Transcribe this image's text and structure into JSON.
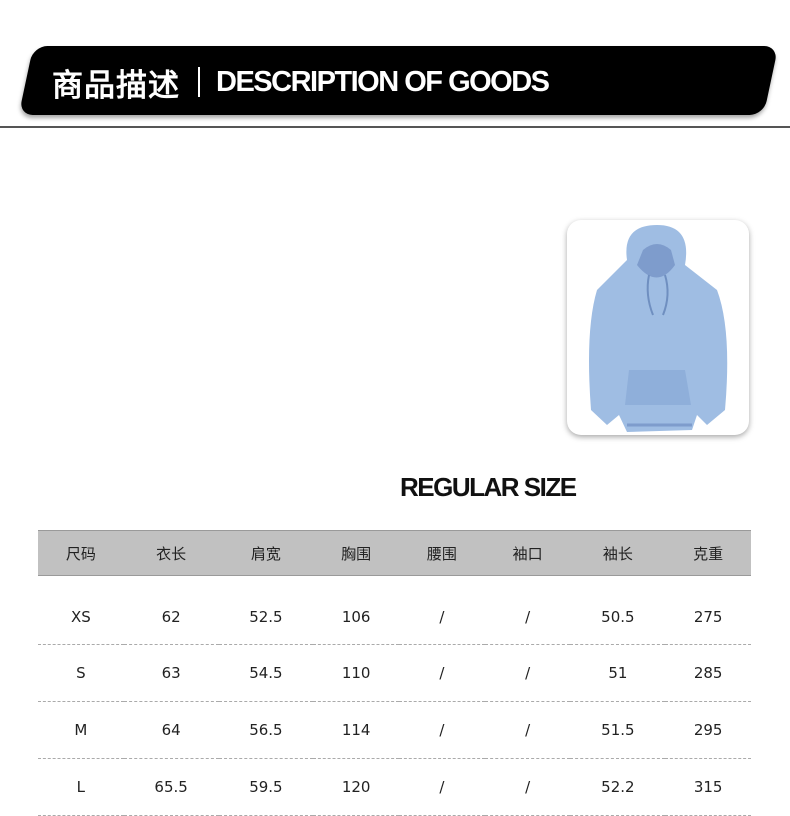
{
  "header": {
    "title_cn": "商品描述",
    "title_en": "DESCRIPTION OF GOODS"
  },
  "product": {
    "image": "light blue hoodie",
    "color": "#9fbde3"
  },
  "size_section": {
    "title": "REGULAR SIZE"
  },
  "size_table": {
    "columns": [
      "尺码",
      "衣长",
      "肩宽",
      "胸围",
      "腰围",
      "袖口",
      "袖长",
      "克重"
    ],
    "rows": [
      [
        "XS",
        "62",
        "52.5",
        "106",
        "/",
        "/",
        "50.5",
        "275"
      ],
      [
        "S",
        "63",
        "54.5",
        "110",
        "/",
        "/",
        "51",
        "285"
      ],
      [
        "M",
        "64",
        "56.5",
        "114",
        "/",
        "/",
        "51.5",
        "295"
      ],
      [
        "L",
        "65.5",
        "59.5",
        "120",
        "/",
        "/",
        "52.2",
        "315"
      ]
    ]
  }
}
